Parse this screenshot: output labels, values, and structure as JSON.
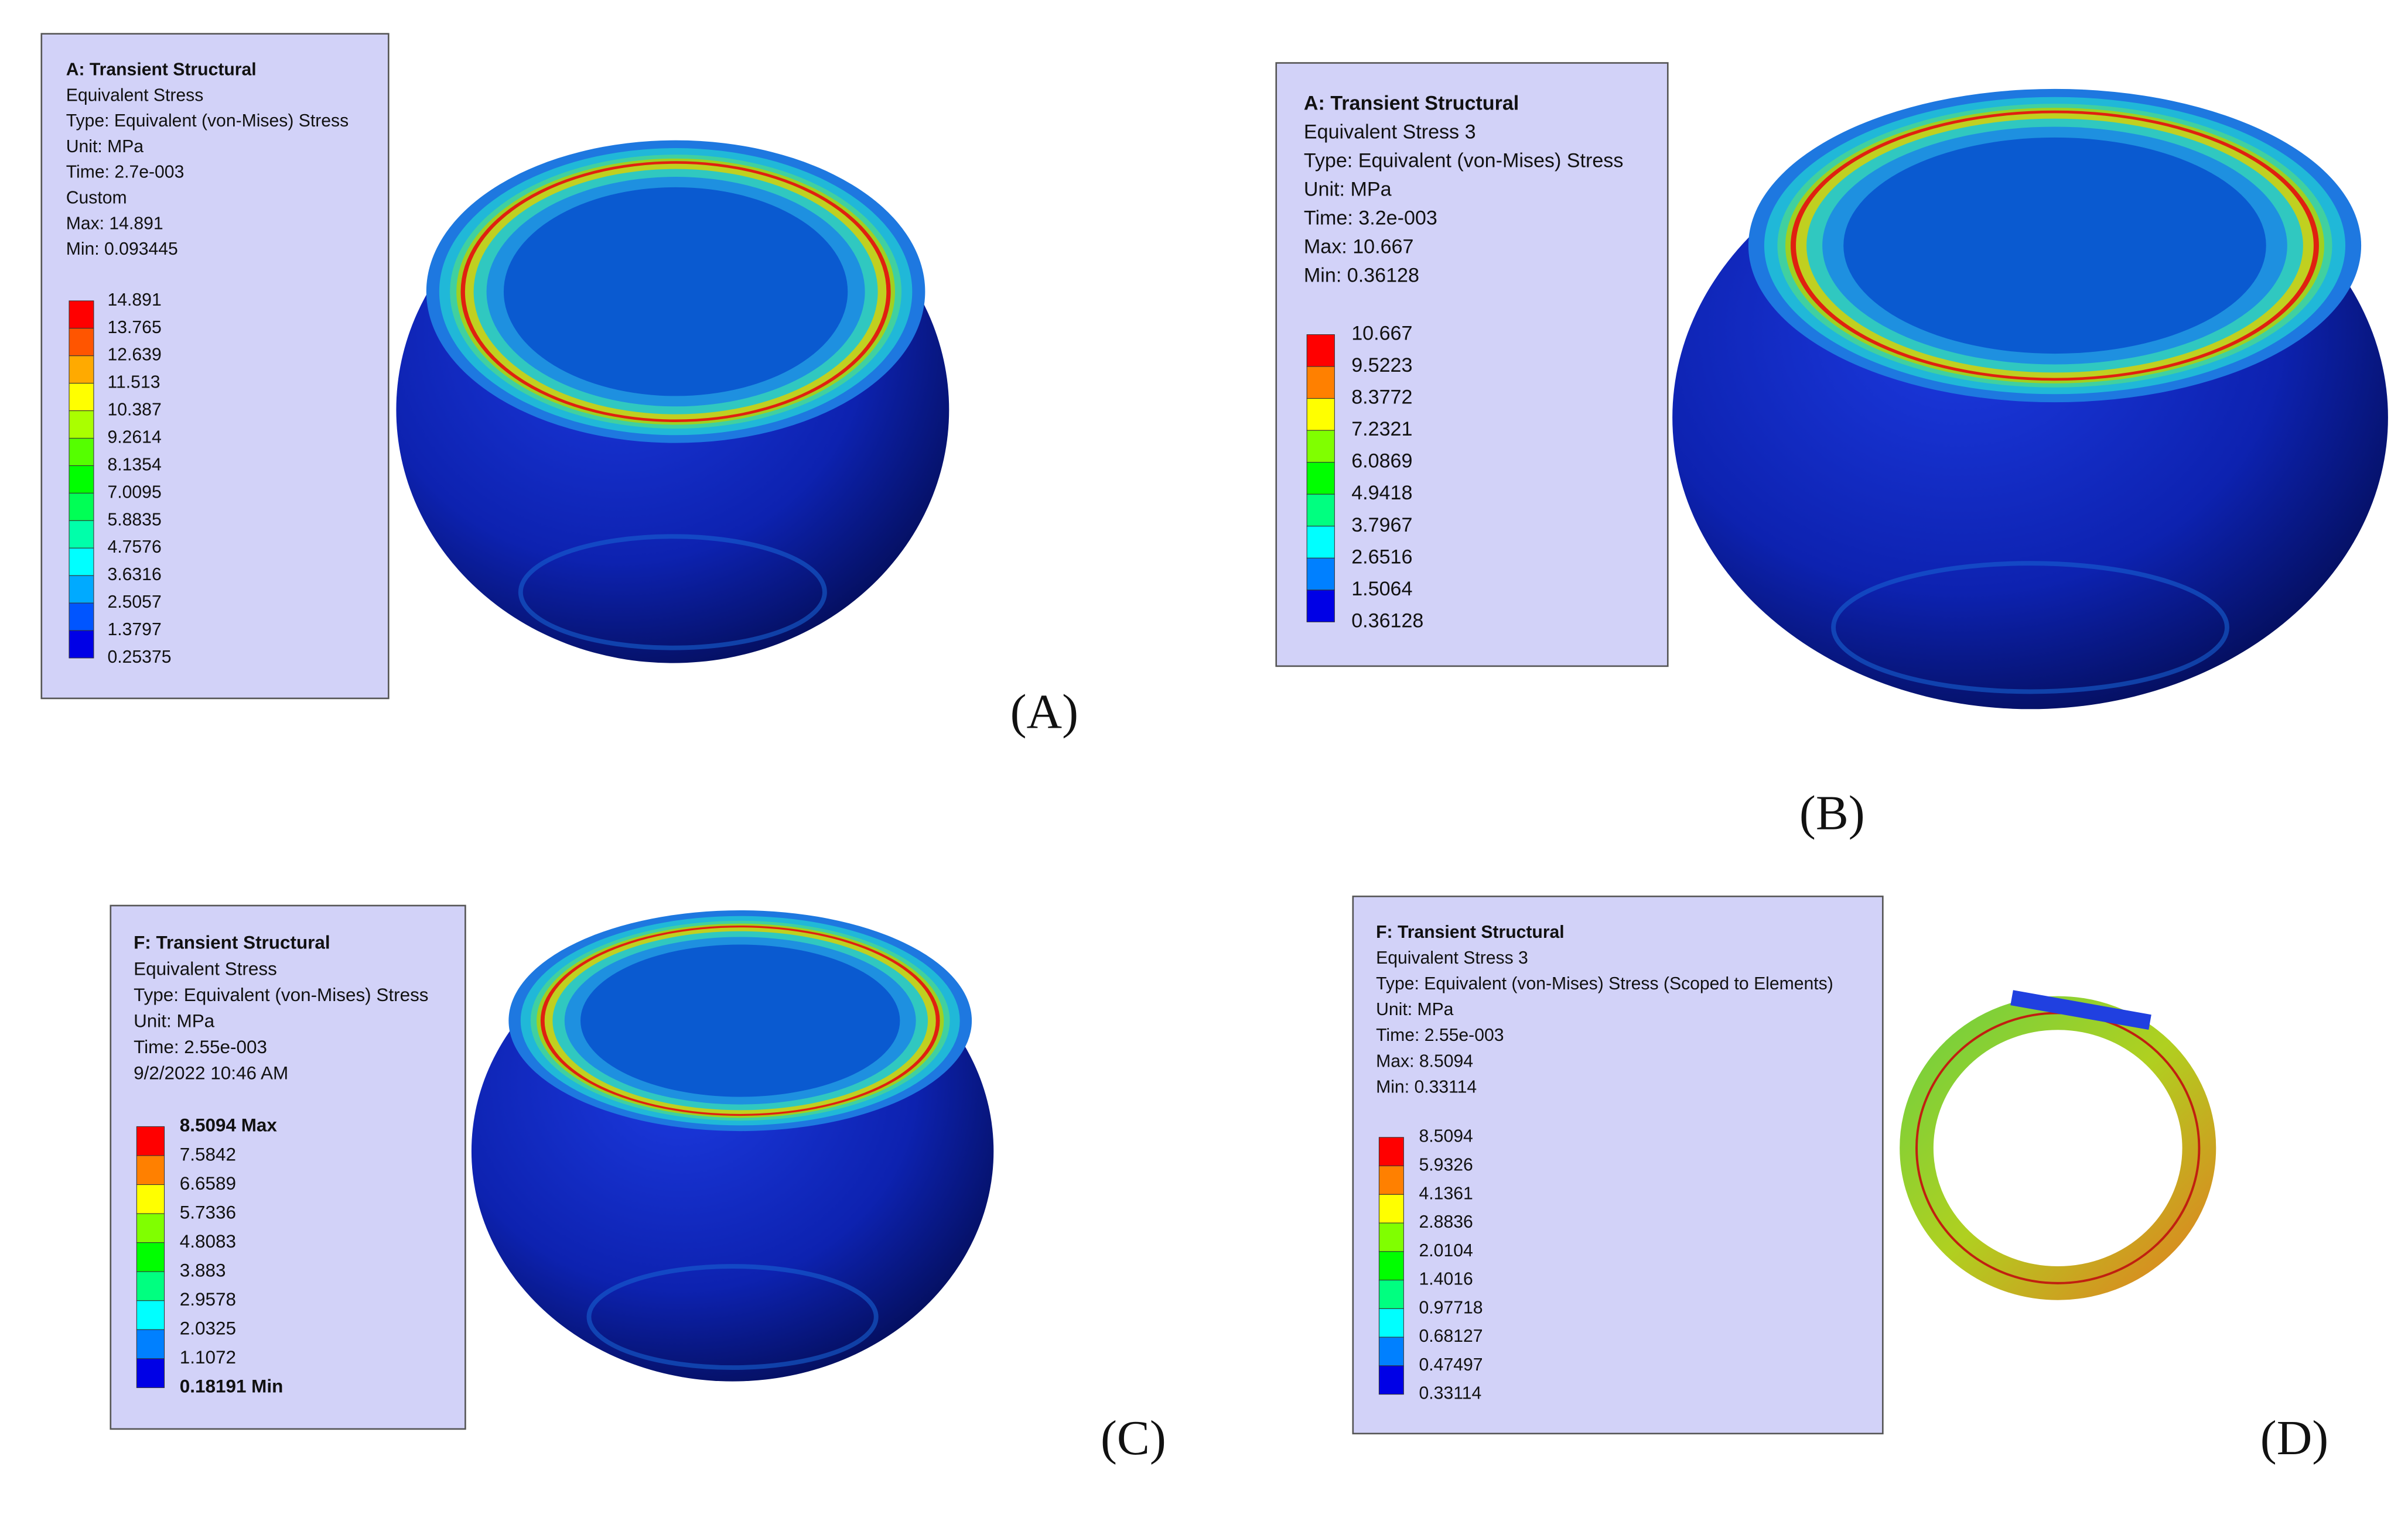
{
  "panels": [
    {
      "label": "(A)",
      "title": "A: Transient Structural",
      "lines": [
        "Equivalent Stress",
        "Type: Equivalent (von-Mises) Stress",
        "Unit: MPa",
        "Time: 2.7e-003",
        "Custom",
        "Max: 14.891",
        "Min: 0.093445"
      ],
      "legend": [
        "14.891",
        "13.765",
        "12.639",
        "11.513",
        "10.387",
        "9.2614",
        "8.1354",
        "7.0095",
        "5.8835",
        "4.7576",
        "3.6316",
        "2.5057",
        "1.3797",
        "0.25375"
      ]
    },
    {
      "label": "(B)",
      "title": "A: Transient Structural",
      "lines": [
        "Equivalent Stress 3",
        "Type: Equivalent (von-Mises) Stress",
        "Unit: MPa",
        "Time: 3.2e-003",
        "Max: 10.667",
        "Min: 0.36128"
      ],
      "legend": [
        "10.667",
        "9.5223",
        "8.3772",
        "7.2321",
        "6.0869",
        "4.9418",
        "3.7967",
        "2.6516",
        "1.5064",
        "0.36128"
      ]
    },
    {
      "label": "(C)",
      "title": "F: Transient Structural",
      "lines": [
        "Equivalent Stress",
        "Type: Equivalent (von-Mises) Stress",
        "Unit: MPa",
        "Time: 2.55e-003",
        "9/2/2022 10:46 AM"
      ],
      "legend": [
        "8.5094 Max",
        "7.5842",
        "6.6589",
        "5.7336",
        "4.8083",
        "3.883",
        "2.9578",
        "2.0325",
        "1.1072",
        "0.18191 Min"
      ]
    },
    {
      "label": "(D)",
      "title": "F: Transient Structural",
      "lines": [
        "Equivalent Stress 3",
        "Type: Equivalent (von-Mises) Stress (Scoped to Elements)",
        "Unit: MPa",
        "Time: 2.55e-003",
        "Max: 8.5094",
        "Min: 0.33114"
      ],
      "legend": [
        "8.5094",
        "5.9326",
        "4.1361",
        "2.8836",
        "2.0104",
        "1.4016",
        "0.97718",
        "0.68127",
        "0.47497",
        "0.33114"
      ]
    }
  ]
}
